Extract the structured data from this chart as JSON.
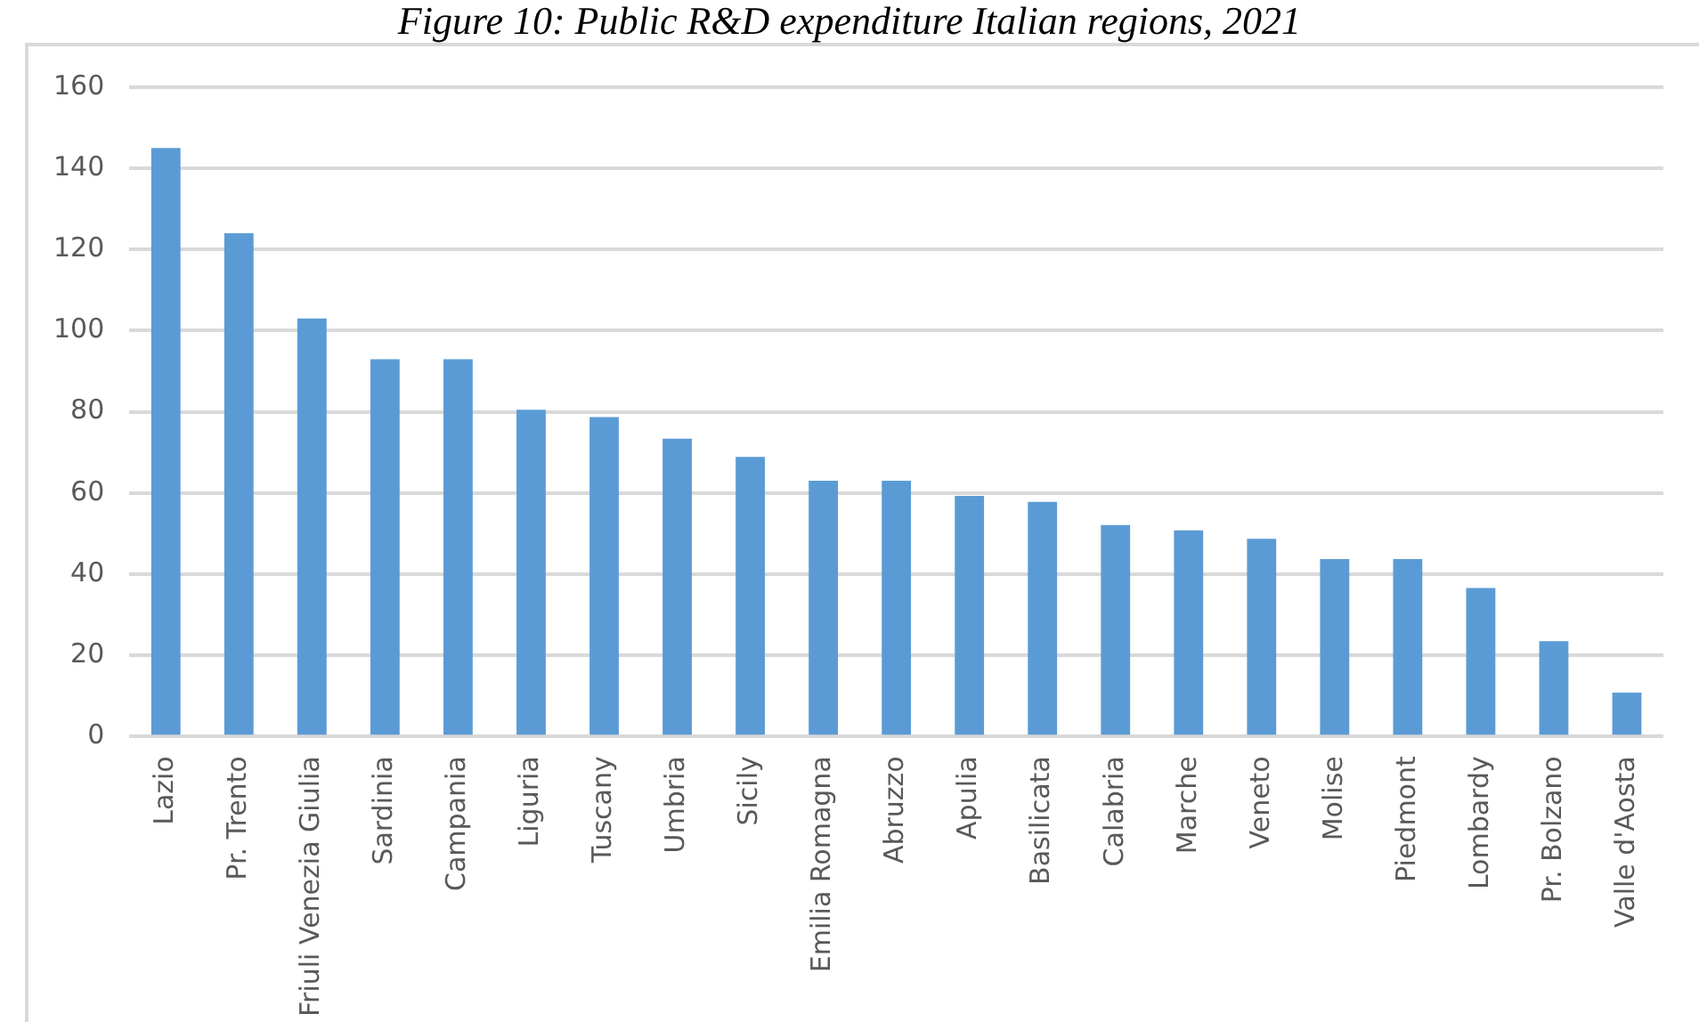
{
  "chart_data": {
    "type": "bar",
    "title": "Figure 10: Public R&D expenditure Italian regions, 2021",
    "categories": [
      "Lazio",
      "Pr. Trento",
      "Friuli Venezia Giulia",
      "Sardinia",
      "Campania",
      "Liguria",
      "Tuscany",
      "Umbria",
      "Sicily",
      "Emilia Romagna",
      "Abruzzo",
      "Apulia",
      "Basilicata",
      "Calabria",
      "Marche",
      "Veneto",
      "Molise",
      "Piedmont",
      "Lombardy",
      "Pr. Bolzano",
      "Valle d'Aosta"
    ],
    "values": [
      145,
      124,
      103,
      93,
      93,
      80.5,
      78.7,
      73.4,
      68.9,
      63,
      63,
      59.3,
      57.8,
      52.1,
      50.8,
      48.7,
      43.7,
      43.7,
      36.6,
      23.5,
      10.8
    ],
    "color": "#5b9bd5",
    "ylim": [
      0,
      160
    ],
    "yticks": [
      0,
      20,
      40,
      60,
      80,
      100,
      120,
      140,
      160
    ],
    "grid": "y",
    "legend": false
  }
}
